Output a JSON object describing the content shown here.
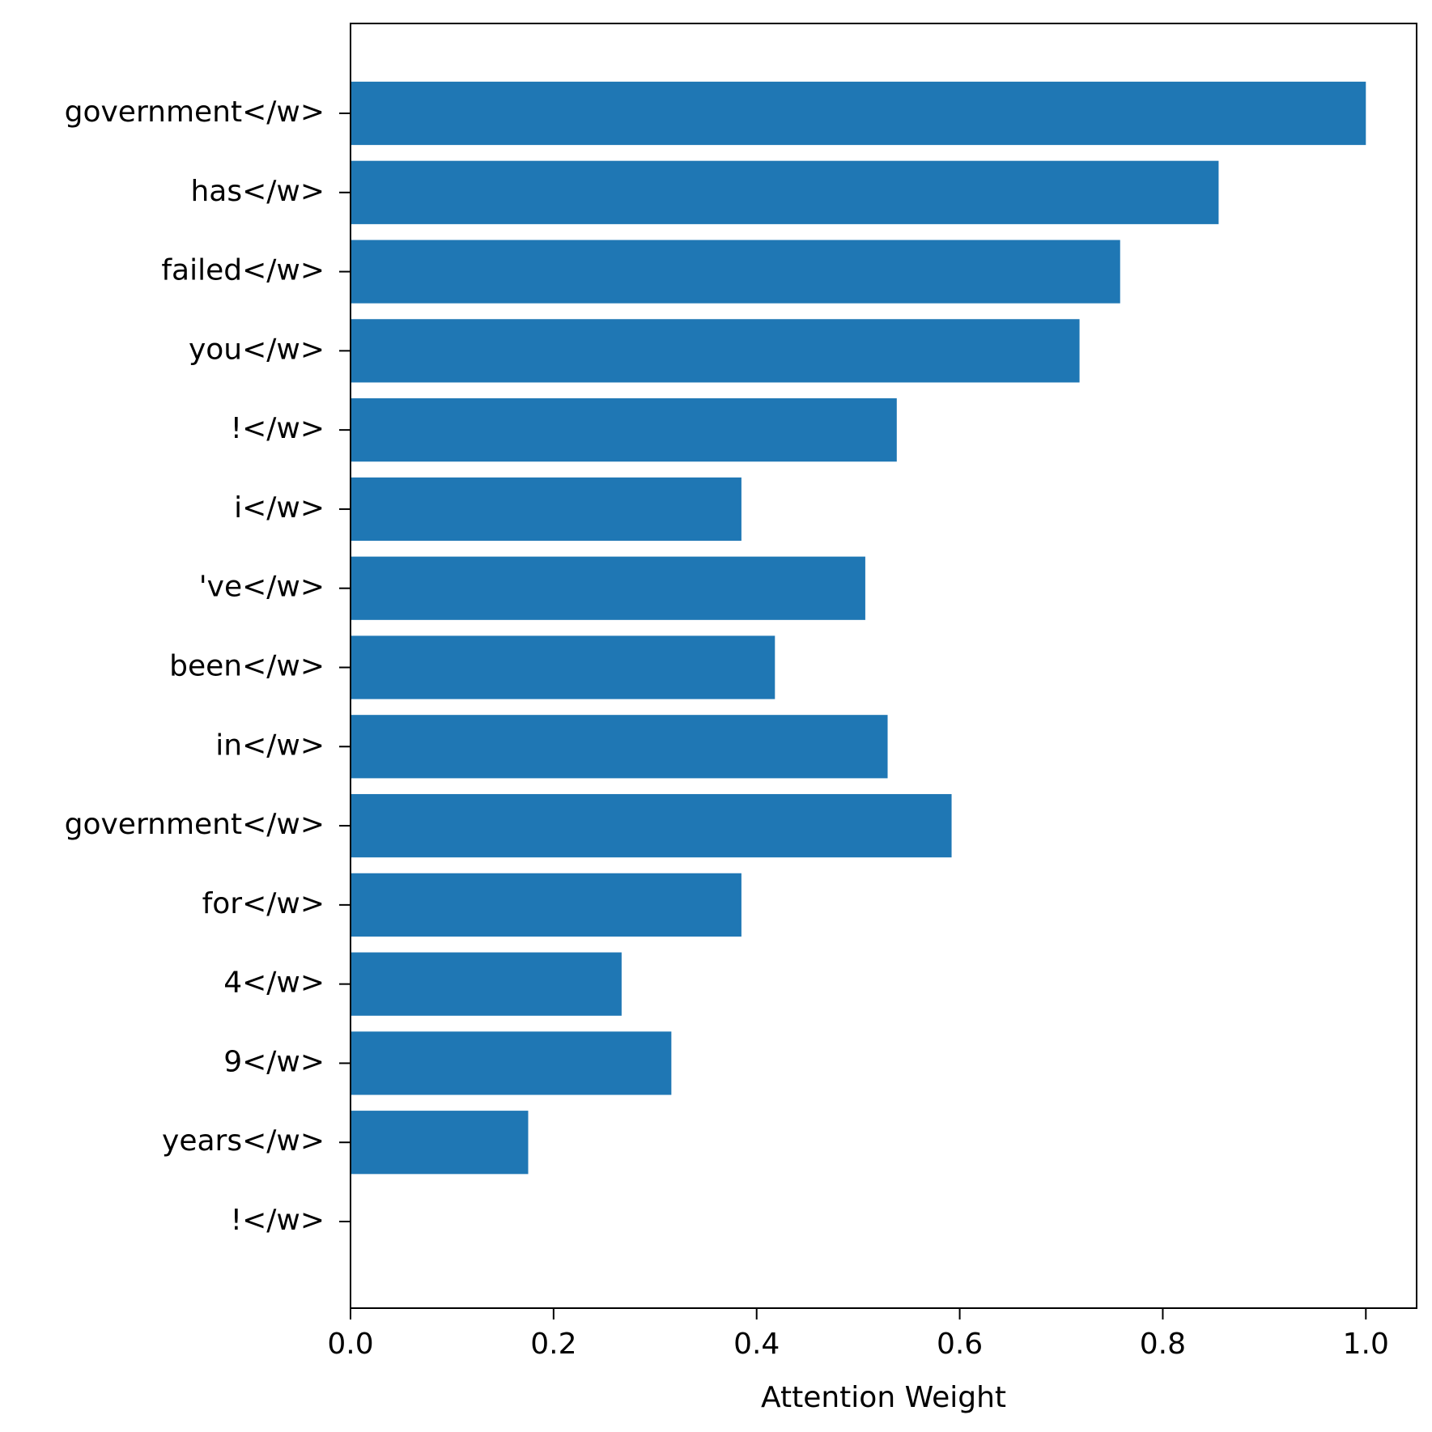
{
  "chart_data": {
    "type": "bar",
    "orientation": "horizontal",
    "categories": [
      "government</w>",
      "has</w>",
      "failed</w>",
      "you</w>",
      "!</w>",
      "i</w>",
      "'ve</w>",
      "been</w>",
      "in</w>",
      "government</w>",
      "for</w>",
      "4</w>",
      "9</w>",
      "years</w>",
      "!</w>"
    ],
    "values": [
      1.0,
      0.855,
      0.758,
      0.718,
      0.538,
      0.385,
      0.507,
      0.418,
      0.529,
      0.592,
      0.385,
      0.267,
      0.316,
      0.175,
      0.0
    ],
    "xlabel": "Attention Weight",
    "ylabel": "",
    "title": "",
    "xlim": [
      0.0,
      1.05
    ],
    "xticks": [
      "0.0",
      "0.2",
      "0.4",
      "0.6",
      "0.8",
      "1.0"
    ],
    "bar_color": "#1f77b4",
    "grid": false,
    "legend": "none"
  }
}
